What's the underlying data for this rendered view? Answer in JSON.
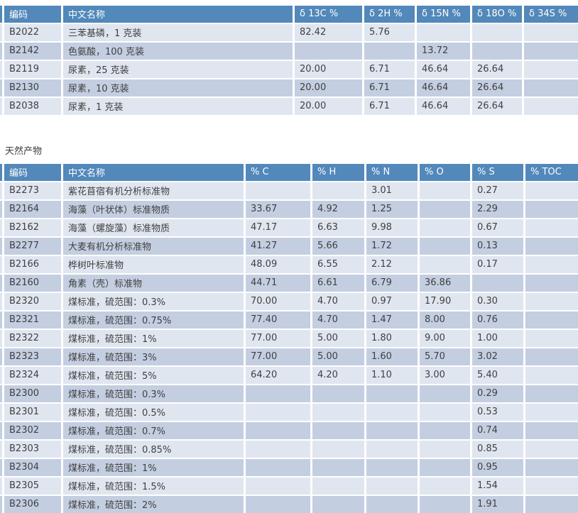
{
  "section_label": "天然产物",
  "colors": {
    "header_bg": "#5288BA",
    "header_text": "#FDFEFF",
    "row_light": "#E0E6F0",
    "row_dark": "#C4CEE1",
    "cell_text": "#3F3F3F"
  },
  "tables": [
    {
      "name": "isotope-standards",
      "headers": [
        "编码",
        "中文名称",
        "δ 13C %",
        "δ 2H %",
        "δ 15N %",
        "δ 18O %",
        "δ 34S %"
      ],
      "rows": [
        [
          "B2022",
          "三苯基磷，1 克装",
          "82.42",
          "5.76",
          "",
          "",
          ""
        ],
        [
          "B2142",
          "色氨酸，100 克装",
          "",
          "",
          "13.72",
          "",
          ""
        ],
        [
          "B2119",
          "尿素，25 克装",
          "20.00",
          "6.71",
          "46.64",
          "26.64",
          ""
        ],
        [
          "B2130",
          "尿素，10 克装",
          "20.00",
          "6.71",
          "46.64",
          "26.64",
          ""
        ],
        [
          "B2038",
          "尿素，1 克装",
          "20.00",
          "6.71",
          "46.64",
          "26.64",
          ""
        ]
      ]
    },
    {
      "name": "natural-products",
      "headers": [
        "编码",
        "中文名称",
        "% C",
        "% H",
        "% N",
        "% O",
        "% S",
        "% TOC"
      ],
      "rows": [
        [
          "B2273",
          "紫花苜宿有机分析标准物",
          "",
          "",
          "3.01",
          "",
          "0.27",
          ""
        ],
        [
          "B2164",
          "海藻（叶状体）标准物质",
          "33.67",
          "4.92",
          "1.25",
          "",
          "2.29",
          ""
        ],
        [
          "B2162",
          "海藻（螺旋藻）标准物质",
          "47.17",
          "6.63",
          "9.98",
          "",
          "0.67",
          ""
        ],
        [
          "B2277",
          "大麦有机分析标准物",
          "41.27",
          "5.66",
          "1.72",
          "",
          "0.13",
          ""
        ],
        [
          "B2166",
          "桦树叶标准物",
          "48.09",
          "6.55",
          "2.12",
          "",
          "0.17",
          ""
        ],
        [
          "B2160",
          "角素（壳）标准物",
          "44.71",
          "6.61",
          "6.79",
          "36.86",
          "",
          ""
        ],
        [
          "B2320",
          "煤标准，硫范围：0.3%",
          "70.00",
          "4.70",
          "0.97",
          "17.90",
          "0.30",
          ""
        ],
        [
          "B2321",
          "煤标准，硫范围：0.75%",
          "77.40",
          "4.70",
          "1.47",
          "8.00",
          "0.76",
          ""
        ],
        [
          "B2322",
          "煤标准，硫范围：1%",
          "77.00",
          "5.00",
          "1.80",
          "9.00",
          "1.00",
          ""
        ],
        [
          "B2323",
          "煤标准，硫范围：3%",
          "77.00",
          "5.00",
          "1.60",
          "5.70",
          "3.02",
          ""
        ],
        [
          "B2324",
          "煤标准，硫范围：5%",
          "64.20",
          "4.20",
          "1.10",
          "3.00",
          "5.40",
          ""
        ],
        [
          "B2300",
          "煤标准，硫范围：0.3%",
          "",
          "",
          "",
          "",
          "0.29",
          ""
        ],
        [
          "B2301",
          "煤标准，硫范围：0.5%",
          "",
          "",
          "",
          "",
          "0.53",
          ""
        ],
        [
          "B2302",
          "煤标准，硫范围：0.7%",
          "",
          "",
          "",
          "",
          "0.74",
          ""
        ],
        [
          "B2303",
          "煤标准，硫范围：0.85%",
          "",
          "",
          "",
          "",
          "0.85",
          ""
        ],
        [
          "B2304",
          "煤标准，硫范围：1%",
          "",
          "",
          "",
          "",
          "0.95",
          ""
        ],
        [
          "B2305",
          "煤标准，硫范围：1.5%",
          "",
          "",
          "",
          "",
          "1.54",
          ""
        ],
        [
          "B2306",
          "煤标准，硫范围：2%",
          "",
          "",
          "",
          "",
          "1.91",
          ""
        ]
      ]
    }
  ]
}
